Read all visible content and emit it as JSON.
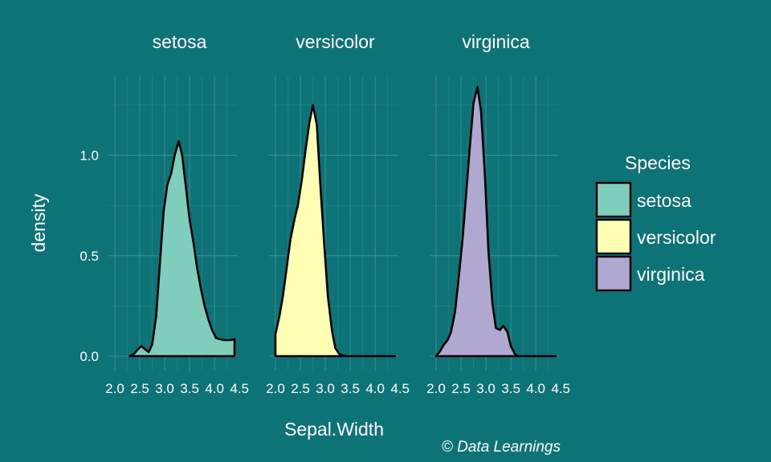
{
  "chart_data": {
    "type": "area",
    "subtype": "faceted density",
    "facet_by": "Species",
    "xlabel": "Sepal.Width",
    "ylabel": "density",
    "x_ticks": [
      2.0,
      2.5,
      3.0,
      3.5,
      4.0,
      4.5
    ],
    "x_tick_labels": [
      "2.0",
      "2.5",
      "3.0",
      "3.5",
      "4.0",
      "4.5"
    ],
    "y_ticks": [
      0.0,
      0.5,
      1.0
    ],
    "y_tick_labels": [
      "0.0",
      "0.5",
      "1.0"
    ],
    "xlim": [
      2.0,
      4.4
    ],
    "ylim": [
      0,
      1.34
    ],
    "grid": true,
    "legend": {
      "title": "Species",
      "placement": "right",
      "entries": [
        "setosa",
        "versicolor",
        "virginica"
      ]
    },
    "series": [
      {
        "name": "setosa",
        "color": "#7fcdbb",
        "x": [
          2.3,
          2.38,
          2.45,
          2.53,
          2.6,
          2.68,
          2.75,
          2.83,
          2.9,
          2.98,
          3.05,
          3.13,
          3.2,
          3.28,
          3.35,
          3.43,
          3.5,
          3.58,
          3.65,
          3.73,
          3.8,
          3.88,
          3.95,
          4.03,
          4.1,
          4.18,
          4.25,
          4.33,
          4.4
        ],
        "y": [
          0.0,
          0.01,
          0.03,
          0.05,
          0.035,
          0.02,
          0.06,
          0.2,
          0.45,
          0.72,
          0.85,
          0.91,
          1.0,
          1.07,
          1.0,
          0.83,
          0.68,
          0.56,
          0.44,
          0.33,
          0.25,
          0.18,
          0.13,
          0.09,
          0.085,
          0.08,
          0.08,
          0.08,
          0.085
        ]
      },
      {
        "name": "versicolor",
        "color": "#ffffb3",
        "x": [
          2.0,
          2.08,
          2.15,
          2.23,
          2.3,
          2.38,
          2.45,
          2.53,
          2.6,
          2.68,
          2.75,
          2.83,
          2.9,
          2.98,
          3.05,
          3.13,
          3.2,
          3.28,
          3.35,
          3.43,
          3.5,
          3.58,
          3.65,
          3.73,
          3.8,
          3.88,
          3.95,
          4.03,
          4.1,
          4.18,
          4.25,
          4.33,
          4.4
        ],
        "y": [
          0.11,
          0.2,
          0.3,
          0.45,
          0.58,
          0.68,
          0.75,
          0.88,
          1.02,
          1.16,
          1.25,
          1.15,
          0.85,
          0.55,
          0.3,
          0.13,
          0.04,
          0.01,
          0.003,
          0.0,
          0.0,
          0.0,
          0.0,
          0.0,
          0.0,
          0.0,
          0.0,
          0.0,
          0.0,
          0.0,
          0.0,
          0.0,
          0.0
        ]
      },
      {
        "name": "virginica",
        "color": "#b0a8d0",
        "x": [
          2.0,
          2.08,
          2.15,
          2.23,
          2.3,
          2.38,
          2.45,
          2.53,
          2.6,
          2.68,
          2.75,
          2.83,
          2.9,
          2.98,
          3.05,
          3.13,
          3.2,
          3.28,
          3.35,
          3.43,
          3.5,
          3.58,
          3.65,
          3.73,
          3.8,
          3.88,
          3.95,
          4.03,
          4.1,
          4.18,
          4.25,
          4.33,
          4.4
        ],
        "y": [
          0.0,
          0.025,
          0.055,
          0.08,
          0.12,
          0.22,
          0.38,
          0.58,
          0.8,
          1.05,
          1.26,
          1.34,
          1.22,
          0.9,
          0.52,
          0.26,
          0.14,
          0.13,
          0.15,
          0.12,
          0.05,
          0.01,
          0.0,
          0.0,
          0.0,
          0.0,
          0.0,
          0.0,
          0.0,
          0.0,
          0.0,
          0.0,
          0.0
        ]
      }
    ],
    "caption": "© Data Learnings"
  }
}
